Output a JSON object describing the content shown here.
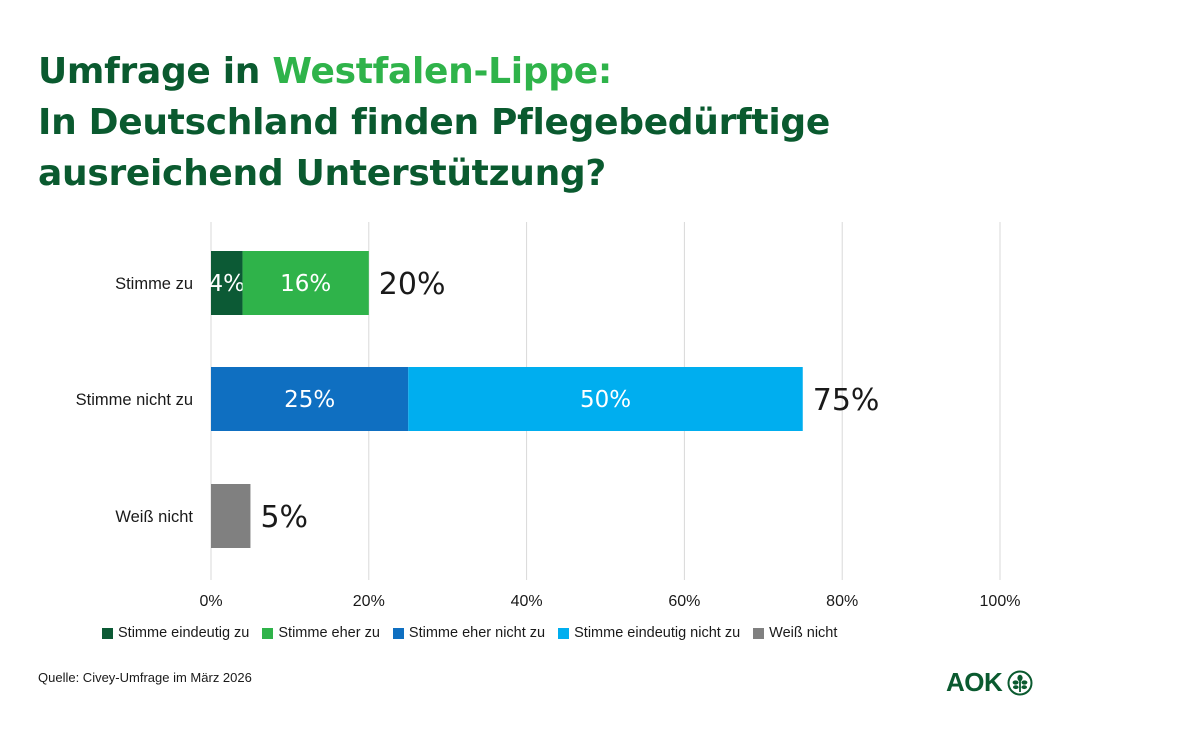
{
  "title": {
    "line1_prefix": "Umfrage in ",
    "line1_highlight": "Westfalen-Lippe:",
    "line2": "In Deutschland finden Pflegebedürftige",
    "line3": "ausreichend Unterstützung?"
  },
  "colors": {
    "title": "#0a5a2f",
    "title_highlight": "#2fb34a",
    "grid": "#d9d9d9"
  },
  "chart_data": {
    "type": "bar",
    "orientation": "horizontal",
    "stacked": true,
    "xlim": [
      0,
      100
    ],
    "x_ticks": [
      0,
      20,
      40,
      60,
      80,
      100
    ],
    "x_tick_labels": [
      "0%",
      "20%",
      "40%",
      "60%",
      "80%",
      "100%"
    ],
    "grid": true,
    "categories": [
      "Stimme zu",
      "Stimme nicht zu",
      "Weiß nicht"
    ],
    "series": [
      {
        "name": "Stimme eindeutig zu",
        "color": "#0c5a35",
        "values": [
          4,
          0,
          0
        ],
        "labels": [
          "4%",
          "",
          ""
        ]
      },
      {
        "name": "Stimme eher zu",
        "color": "#2fb34a",
        "values": [
          16,
          0,
          0
        ],
        "labels": [
          "16%",
          "",
          ""
        ]
      },
      {
        "name": "Stimme eher nicht zu",
        "color": "#0f6fc1",
        "values": [
          0,
          25,
          0
        ],
        "labels": [
          "",
          "25%",
          ""
        ]
      },
      {
        "name": "Stimme eindeutig nicht zu",
        "color": "#00aeef",
        "values": [
          0,
          50,
          0
        ],
        "labels": [
          "",
          "50%",
          ""
        ]
      },
      {
        "name": "Weiß nicht",
        "color": "#808080",
        "values": [
          0,
          0,
          5
        ],
        "labels": [
          "",
          "",
          ""
        ]
      }
    ],
    "totals": [
      20,
      75,
      5
    ],
    "total_labels": [
      "20%",
      "75%",
      "5%"
    ],
    "legend_position": "bottom"
  },
  "source": "Quelle: Civey-Umfrage im März 2026",
  "logo": {
    "text": "AOK",
    "icon": "aok-tree-logo-icon"
  }
}
